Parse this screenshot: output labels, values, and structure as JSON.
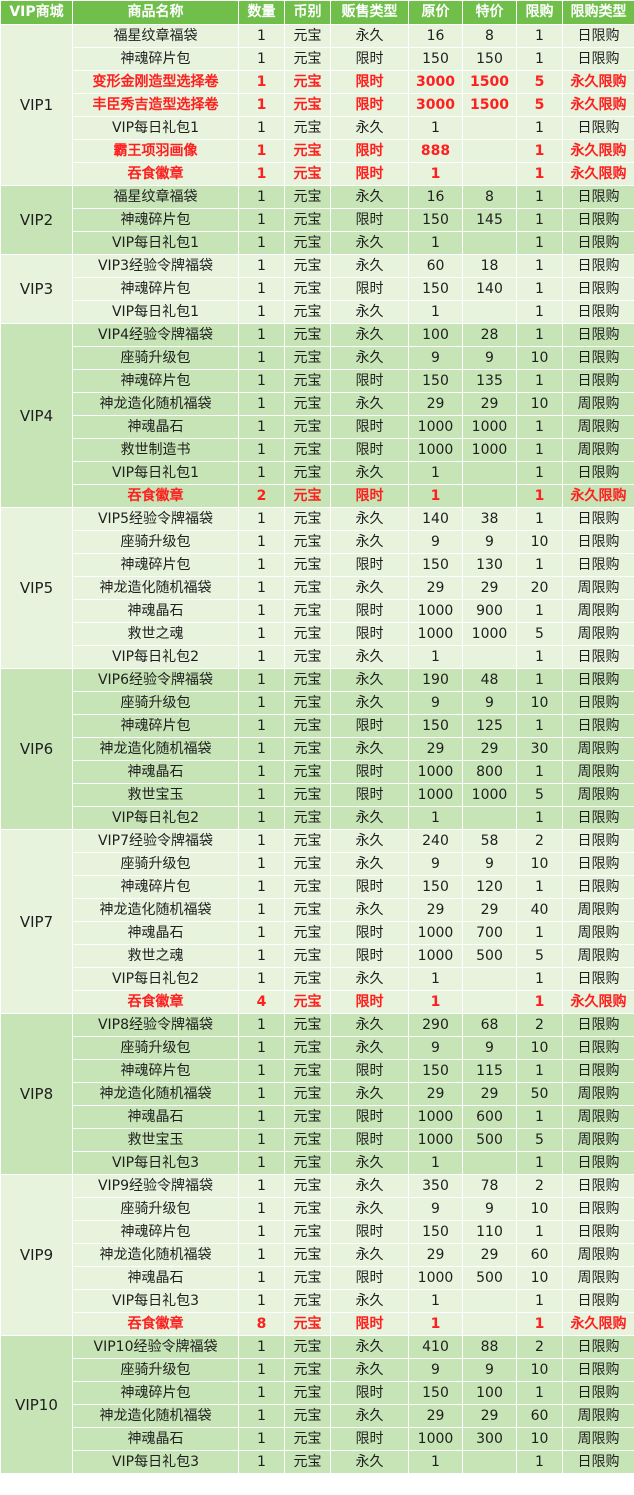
{
  "headers": [
    "VIP商城",
    "商品名称",
    "数量",
    "币别",
    "贩售类型",
    "原价",
    "特价",
    "限购",
    "限购类型"
  ],
  "groups": [
    {
      "vip": "VIP1",
      "rows": [
        {
          "name": "福星纹章福袋",
          "qty": "1",
          "currency": "元宝",
          "sale_type": "永久",
          "orig": "16",
          "special": "8",
          "limit": "1",
          "limit_type": "日限购"
        },
        {
          "name": "神魂碎片包",
          "qty": "1",
          "currency": "元宝",
          "sale_type": "限时",
          "orig": "150",
          "special": "150",
          "limit": "1",
          "limit_type": "日限购"
        },
        {
          "name": "变形金刚造型选择卷",
          "qty": "1",
          "currency": "元宝",
          "sale_type": "限时",
          "orig": "3000",
          "special": "1500",
          "limit": "5",
          "limit_type": "永久限购",
          "highlight": true
        },
        {
          "name": "丰臣秀吉造型选择卷",
          "qty": "1",
          "currency": "元宝",
          "sale_type": "限时",
          "orig": "3000",
          "special": "1500",
          "limit": "5",
          "limit_type": "永久限购",
          "highlight": true
        },
        {
          "name": "VIP每日礼包1",
          "qty": "1",
          "currency": "元宝",
          "sale_type": "永久",
          "orig": "1",
          "special": "",
          "limit": "1",
          "limit_type": "日限购"
        },
        {
          "name": "霸王项羽画像",
          "qty": "1",
          "currency": "元宝",
          "sale_type": "限时",
          "orig": "888",
          "special": "",
          "limit": "1",
          "limit_type": "永久限购",
          "highlight": true
        },
        {
          "name": "吞食徽章",
          "qty": "1",
          "currency": "元宝",
          "sale_type": "限时",
          "orig": "1",
          "special": "",
          "limit": "1",
          "limit_type": "永久限购",
          "highlight": true
        }
      ]
    },
    {
      "vip": "VIP2",
      "rows": [
        {
          "name": "福星纹章福袋",
          "qty": "1",
          "currency": "元宝",
          "sale_type": "永久",
          "orig": "16",
          "special": "8",
          "limit": "1",
          "limit_type": "日限购"
        },
        {
          "name": "神魂碎片包",
          "qty": "1",
          "currency": "元宝",
          "sale_type": "限时",
          "orig": "150",
          "special": "145",
          "limit": "1",
          "limit_type": "日限购"
        },
        {
          "name": "VIP每日礼包1",
          "qty": "1",
          "currency": "元宝",
          "sale_type": "永久",
          "orig": "1",
          "special": "",
          "limit": "1",
          "limit_type": "日限购"
        }
      ]
    },
    {
      "vip": "VIP3",
      "rows": [
        {
          "name": "VIP3经验令牌福袋",
          "qty": "1",
          "currency": "元宝",
          "sale_type": "永久",
          "orig": "60",
          "special": "18",
          "limit": "1",
          "limit_type": "日限购"
        },
        {
          "name": "神魂碎片包",
          "qty": "1",
          "currency": "元宝",
          "sale_type": "限时",
          "orig": "150",
          "special": "140",
          "limit": "1",
          "limit_type": "日限购"
        },
        {
          "name": "VIP每日礼包1",
          "qty": "1",
          "currency": "元宝",
          "sale_type": "永久",
          "orig": "1",
          "special": "",
          "limit": "1",
          "limit_type": "日限购"
        }
      ]
    },
    {
      "vip": "VIP4",
      "rows": [
        {
          "name": "VIP4经验令牌福袋",
          "qty": "1",
          "currency": "元宝",
          "sale_type": "永久",
          "orig": "100",
          "special": "28",
          "limit": "1",
          "limit_type": "日限购"
        },
        {
          "name": "座骑升级包",
          "qty": "1",
          "currency": "元宝",
          "sale_type": "永久",
          "orig": "9",
          "special": "9",
          "limit": "10",
          "limit_type": "日限购"
        },
        {
          "name": "神魂碎片包",
          "qty": "1",
          "currency": "元宝",
          "sale_type": "限时",
          "orig": "150",
          "special": "135",
          "limit": "1",
          "limit_type": "日限购"
        },
        {
          "name": "神龙造化随机福袋",
          "qty": "1",
          "currency": "元宝",
          "sale_type": "永久",
          "orig": "29",
          "special": "29",
          "limit": "10",
          "limit_type": "周限购"
        },
        {
          "name": "神魂晶石",
          "qty": "1",
          "currency": "元宝",
          "sale_type": "限时",
          "orig": "1000",
          "special": "1000",
          "limit": "1",
          "limit_type": "周限购"
        },
        {
          "name": "救世制造书",
          "qty": "1",
          "currency": "元宝",
          "sale_type": "限时",
          "orig": "1000",
          "special": "1000",
          "limit": "1",
          "limit_type": "周限购"
        },
        {
          "name": "VIP每日礼包1",
          "qty": "1",
          "currency": "元宝",
          "sale_type": "永久",
          "orig": "1",
          "special": "",
          "limit": "1",
          "limit_type": "日限购"
        },
        {
          "name": "吞食徽章",
          "qty": "2",
          "currency": "元宝",
          "sale_type": "限时",
          "orig": "1",
          "special": "",
          "limit": "1",
          "limit_type": "永久限购",
          "highlight": true
        }
      ]
    },
    {
      "vip": "VIP5",
      "rows": [
        {
          "name": "VIP5经验令牌福袋",
          "qty": "1",
          "currency": "元宝",
          "sale_type": "永久",
          "orig": "140",
          "special": "38",
          "limit": "1",
          "limit_type": "日限购"
        },
        {
          "name": "座骑升级包",
          "qty": "1",
          "currency": "元宝",
          "sale_type": "永久",
          "orig": "9",
          "special": "9",
          "limit": "10",
          "limit_type": "日限购"
        },
        {
          "name": "神魂碎片包",
          "qty": "1",
          "currency": "元宝",
          "sale_type": "限时",
          "orig": "150",
          "special": "130",
          "limit": "1",
          "limit_type": "日限购"
        },
        {
          "name": "神龙造化随机福袋",
          "qty": "1",
          "currency": "元宝",
          "sale_type": "永久",
          "orig": "29",
          "special": "29",
          "limit": "20",
          "limit_type": "周限购"
        },
        {
          "name": "神魂晶石",
          "qty": "1",
          "currency": "元宝",
          "sale_type": "限时",
          "orig": "1000",
          "special": "900",
          "limit": "1",
          "limit_type": "周限购"
        },
        {
          "name": "救世之魂",
          "qty": "1",
          "currency": "元宝",
          "sale_type": "限时",
          "orig": "1000",
          "special": "1000",
          "limit": "5",
          "limit_type": "周限购"
        },
        {
          "name": "VIP每日礼包2",
          "qty": "1",
          "currency": "元宝",
          "sale_type": "永久",
          "orig": "1",
          "special": "",
          "limit": "1",
          "limit_type": "日限购"
        }
      ]
    },
    {
      "vip": "VIP6",
      "rows": [
        {
          "name": "VIP6经验令牌福袋",
          "qty": "1",
          "currency": "元宝",
          "sale_type": "永久",
          "orig": "190",
          "special": "48",
          "limit": "1",
          "limit_type": "日限购"
        },
        {
          "name": "座骑升级包",
          "qty": "1",
          "currency": "元宝",
          "sale_type": "永久",
          "orig": "9",
          "special": "9",
          "limit": "10",
          "limit_type": "日限购"
        },
        {
          "name": "神魂碎片包",
          "qty": "1",
          "currency": "元宝",
          "sale_type": "限时",
          "orig": "150",
          "special": "125",
          "limit": "1",
          "limit_type": "日限购"
        },
        {
          "name": "神龙造化随机福袋",
          "qty": "1",
          "currency": "元宝",
          "sale_type": "永久",
          "orig": "29",
          "special": "29",
          "limit": "30",
          "limit_type": "周限购"
        },
        {
          "name": "神魂晶石",
          "qty": "1",
          "currency": "元宝",
          "sale_type": "限时",
          "orig": "1000",
          "special": "800",
          "limit": "1",
          "limit_type": "周限购"
        },
        {
          "name": "救世宝玉",
          "qty": "1",
          "currency": "元宝",
          "sale_type": "限时",
          "orig": "1000",
          "special": "1000",
          "limit": "5",
          "limit_type": "周限购"
        },
        {
          "name": "VIP每日礼包2",
          "qty": "1",
          "currency": "元宝",
          "sale_type": "永久",
          "orig": "1",
          "special": "",
          "limit": "1",
          "limit_type": "日限购"
        }
      ]
    },
    {
      "vip": "VIP7",
      "rows": [
        {
          "name": "VIP7经验令牌福袋",
          "qty": "1",
          "currency": "元宝",
          "sale_type": "永久",
          "orig": "240",
          "special": "58",
          "limit": "2",
          "limit_type": "日限购"
        },
        {
          "name": "座骑升级包",
          "qty": "1",
          "currency": "元宝",
          "sale_type": "永久",
          "orig": "9",
          "special": "9",
          "limit": "10",
          "limit_type": "日限购"
        },
        {
          "name": "神魂碎片包",
          "qty": "1",
          "currency": "元宝",
          "sale_type": "限时",
          "orig": "150",
          "special": "120",
          "limit": "1",
          "limit_type": "日限购"
        },
        {
          "name": "神龙造化随机福袋",
          "qty": "1",
          "currency": "元宝",
          "sale_type": "永久",
          "orig": "29",
          "special": "29",
          "limit": "40",
          "limit_type": "周限购"
        },
        {
          "name": "神魂晶石",
          "qty": "1",
          "currency": "元宝",
          "sale_type": "限时",
          "orig": "1000",
          "special": "700",
          "limit": "1",
          "limit_type": "周限购"
        },
        {
          "name": "救世之魂",
          "qty": "1",
          "currency": "元宝",
          "sale_type": "限时",
          "orig": "1000",
          "special": "500",
          "limit": "5",
          "limit_type": "周限购"
        },
        {
          "name": "VIP每日礼包2",
          "qty": "1",
          "currency": "元宝",
          "sale_type": "永久",
          "orig": "1",
          "special": "",
          "limit": "1",
          "limit_type": "日限购"
        },
        {
          "name": "吞食徽章",
          "qty": "4",
          "currency": "元宝",
          "sale_type": "限时",
          "orig": "1",
          "special": "",
          "limit": "1",
          "limit_type": "永久限购",
          "highlight": true
        }
      ]
    },
    {
      "vip": "VIP8",
      "rows": [
        {
          "name": "VIP8经验令牌福袋",
          "qty": "1",
          "currency": "元宝",
          "sale_type": "永久",
          "orig": "290",
          "special": "68",
          "limit": "2",
          "limit_type": "日限购"
        },
        {
          "name": "座骑升级包",
          "qty": "1",
          "currency": "元宝",
          "sale_type": "永久",
          "orig": "9",
          "special": "9",
          "limit": "10",
          "limit_type": "日限购"
        },
        {
          "name": "神魂碎片包",
          "qty": "1",
          "currency": "元宝",
          "sale_type": "限时",
          "orig": "150",
          "special": "115",
          "limit": "1",
          "limit_type": "日限购"
        },
        {
          "name": "神龙造化随机福袋",
          "qty": "1",
          "currency": "元宝",
          "sale_type": "永久",
          "orig": "29",
          "special": "29",
          "limit": "50",
          "limit_type": "周限购"
        },
        {
          "name": "神魂晶石",
          "qty": "1",
          "currency": "元宝",
          "sale_type": "限时",
          "orig": "1000",
          "special": "600",
          "limit": "1",
          "limit_type": "周限购"
        },
        {
          "name": "救世宝玉",
          "qty": "1",
          "currency": "元宝",
          "sale_type": "限时",
          "orig": "1000",
          "special": "500",
          "limit": "5",
          "limit_type": "周限购"
        },
        {
          "name": "VIP每日礼包3",
          "qty": "1",
          "currency": "元宝",
          "sale_type": "永久",
          "orig": "1",
          "special": "",
          "limit": "1",
          "limit_type": "日限购"
        }
      ]
    },
    {
      "vip": "VIP9",
      "rows": [
        {
          "name": "VIP9经验令牌福袋",
          "qty": "1",
          "currency": "元宝",
          "sale_type": "永久",
          "orig": "350",
          "special": "78",
          "limit": "2",
          "limit_type": "日限购"
        },
        {
          "name": "座骑升级包",
          "qty": "1",
          "currency": "元宝",
          "sale_type": "永久",
          "orig": "9",
          "special": "9",
          "limit": "10",
          "limit_type": "日限购"
        },
        {
          "name": "神魂碎片包",
          "qty": "1",
          "currency": "元宝",
          "sale_type": "限时",
          "orig": "150",
          "special": "110",
          "limit": "1",
          "limit_type": "日限购"
        },
        {
          "name": "神龙造化随机福袋",
          "qty": "1",
          "currency": "元宝",
          "sale_type": "永久",
          "orig": "29",
          "special": "29",
          "limit": "60",
          "limit_type": "周限购"
        },
        {
          "name": "神魂晶石",
          "qty": "1",
          "currency": "元宝",
          "sale_type": "限时",
          "orig": "1000",
          "special": "500",
          "limit": "10",
          "limit_type": "周限购"
        },
        {
          "name": "VIP每日礼包3",
          "qty": "1",
          "currency": "元宝",
          "sale_type": "永久",
          "orig": "1",
          "special": "",
          "limit": "1",
          "limit_type": "日限购"
        },
        {
          "name": "吞食徽章",
          "qty": "8",
          "currency": "元宝",
          "sale_type": "限时",
          "orig": "1",
          "special": "",
          "limit": "1",
          "limit_type": "永久限购",
          "highlight": true
        }
      ]
    },
    {
      "vip": "VIP10",
      "rows": [
        {
          "name": "VIP10经验令牌福袋",
          "qty": "1",
          "currency": "元宝",
          "sale_type": "永久",
          "orig": "410",
          "special": "88",
          "limit": "2",
          "limit_type": "日限购"
        },
        {
          "name": "座骑升级包",
          "qty": "1",
          "currency": "元宝",
          "sale_type": "永久",
          "orig": "9",
          "special": "9",
          "limit": "10",
          "limit_type": "日限购"
        },
        {
          "name": "神魂碎片包",
          "qty": "1",
          "currency": "元宝",
          "sale_type": "限时",
          "orig": "150",
          "special": "100",
          "limit": "1",
          "limit_type": "日限购"
        },
        {
          "name": "神龙造化随机福袋",
          "qty": "1",
          "currency": "元宝",
          "sale_type": "永久",
          "orig": "29",
          "special": "29",
          "limit": "60",
          "limit_type": "周限购"
        },
        {
          "name": "神魂晶石",
          "qty": "1",
          "currency": "元宝",
          "sale_type": "限时",
          "orig": "1000",
          "special": "300",
          "limit": "10",
          "limit_type": "周限购"
        },
        {
          "name": "VIP每日礼包3",
          "qty": "1",
          "currency": "元宝",
          "sale_type": "永久",
          "orig": "1",
          "special": "",
          "limit": "1",
          "limit_type": "日限购"
        }
      ]
    }
  ]
}
